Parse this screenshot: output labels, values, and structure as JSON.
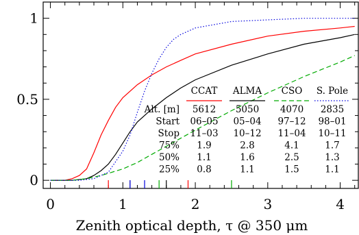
{
  "chart_data": {
    "type": "line",
    "xlabel": "Zenith optical depth, τ @ 350 μm",
    "ylabel": "",
    "xlim": [
      -0.1,
      4.25
    ],
    "ylim": [
      -0.05,
      1.1
    ],
    "x_ticks": [
      0,
      1,
      2,
      3,
      4
    ],
    "y_ticks": [
      {
        "value": 0,
        "label": "0"
      },
      {
        "value": 0.5,
        "label": "0.5"
      },
      {
        "value": 1,
        "label": "1"
      }
    ],
    "series": [
      {
        "name": "CCAT",
        "color": "#ff0000",
        "style": "solid",
        "points": [
          [
            0,
            0
          ],
          [
            0.2,
            0
          ],
          [
            0.3,
            0.01
          ],
          [
            0.4,
            0.03
          ],
          [
            0.5,
            0.07
          ],
          [
            0.6,
            0.17
          ],
          [
            0.7,
            0.28
          ],
          [
            0.8,
            0.37
          ],
          [
            0.9,
            0.45
          ],
          [
            1.0,
            0.51
          ],
          [
            1.2,
            0.59
          ],
          [
            1.4,
            0.65
          ],
          [
            1.6,
            0.7
          ],
          [
            1.8,
            0.74
          ],
          [
            2.0,
            0.78
          ],
          [
            2.5,
            0.84
          ],
          [
            3.0,
            0.89
          ],
          [
            3.5,
            0.92
          ],
          [
            4.0,
            0.94
          ],
          [
            4.2,
            0.95
          ]
        ],
        "markers": [
          0.8,
          1.9
        ]
      },
      {
        "name": "ALMA",
        "color": "#000000",
        "style": "solid",
        "points": [
          [
            0,
            0
          ],
          [
            0.3,
            0
          ],
          [
            0.5,
            0.01
          ],
          [
            0.6,
            0.03
          ],
          [
            0.7,
            0.06
          ],
          [
            0.8,
            0.1
          ],
          [
            0.9,
            0.16
          ],
          [
            1.0,
            0.23
          ],
          [
            1.1,
            0.3
          ],
          [
            1.2,
            0.36
          ],
          [
            1.4,
            0.44
          ],
          [
            1.6,
            0.51
          ],
          [
            1.8,
            0.57
          ],
          [
            2.0,
            0.62
          ],
          [
            2.5,
            0.71
          ],
          [
            3.0,
            0.78
          ],
          [
            3.5,
            0.84
          ],
          [
            4.0,
            0.88
          ],
          [
            4.2,
            0.9
          ]
        ],
        "markers": [
          1.1,
          1.6
        ]
      },
      {
        "name": "CSO",
        "color": "#00aa00",
        "style": "dashed",
        "points": [
          [
            0,
            0
          ],
          [
            0.3,
            0
          ],
          [
            0.5,
            0.01
          ],
          [
            0.7,
            0.03
          ],
          [
            1.0,
            0.07
          ],
          [
            1.2,
            0.11
          ],
          [
            1.4,
            0.16
          ],
          [
            1.6,
            0.21
          ],
          [
            1.8,
            0.26
          ],
          [
            2.0,
            0.31
          ],
          [
            2.5,
            0.43
          ],
          [
            3.0,
            0.54
          ],
          [
            3.5,
            0.64
          ],
          [
            4.0,
            0.73
          ],
          [
            4.2,
            0.77
          ]
        ],
        "markers": [
          1.5,
          2.5
        ]
      },
      {
        "name": "S. Pole",
        "color": "#0000dd",
        "style": "dotted",
        "points": [
          [
            0,
            0
          ],
          [
            0.4,
            0
          ],
          [
            0.6,
            0.01
          ],
          [
            0.8,
            0.05
          ],
          [
            1.0,
            0.18
          ],
          [
            1.1,
            0.28
          ],
          [
            1.2,
            0.42
          ],
          [
            1.3,
            0.55
          ],
          [
            1.4,
            0.66
          ],
          [
            1.5,
            0.75
          ],
          [
            1.6,
            0.82
          ],
          [
            1.7,
            0.87
          ],
          [
            1.8,
            0.9
          ],
          [
            2.0,
            0.94
          ],
          [
            2.5,
            0.98
          ],
          [
            3.0,
            0.99
          ],
          [
            3.5,
            1.0
          ],
          [
            4.2,
            1.0
          ]
        ],
        "markers": [
          1.1,
          1.3
        ]
      }
    ],
    "table": {
      "columns": [
        "CCAT",
        "ALMA",
        "CSO",
        "S. Pole"
      ],
      "rows": [
        {
          "label": "Alt. [m]",
          "values": [
            "5612",
            "5050",
            "4070",
            "2835"
          ]
        },
        {
          "label": "Start",
          "values": [
            "06–05",
            "05–04",
            "97–12",
            "98–01"
          ]
        },
        {
          "label": "Stop",
          "values": [
            "11–03",
            "10–12",
            "11–04",
            "10–11"
          ]
        },
        {
          "label": "75%",
          "values": [
            "1.9",
            "2.8",
            "4.1",
            "1.7"
          ]
        },
        {
          "label": "50%",
          "values": [
            "1.1",
            "1.6",
            "2.5",
            "1.3"
          ]
        },
        {
          "label": "25%",
          "values": [
            "0.8",
            "1.1",
            "1.5",
            "1.1"
          ]
        }
      ]
    }
  }
}
